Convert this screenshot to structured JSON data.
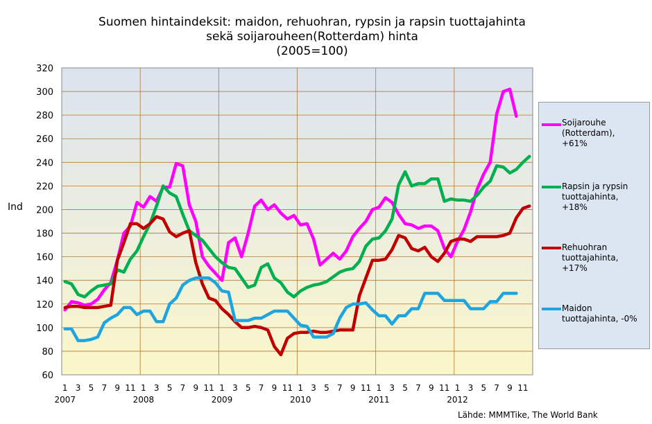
{
  "chart_data": {
    "type": "line",
    "title_lines": [
      "Suomen hintaindeksit: maidon, rehuohran, rypsin ja rapsin tuottajahinta",
      "sekä soijarouheen(Rotterdam) hinta",
      "(2005=100)"
    ],
    "ylabel": "Ind",
    "ylim": [
      60,
      320
    ],
    "yticks": [
      60,
      80,
      100,
      120,
      140,
      160,
      180,
      200,
      220,
      240,
      260,
      280,
      300,
      320
    ],
    "x_month_labels": [
      "1",
      "3",
      "5",
      "7",
      "9",
      "11",
      "1",
      "3",
      "5",
      "7",
      "9",
      "11",
      "1",
      "3",
      "5",
      "7",
      "9",
      "11",
      "1",
      "3",
      "5",
      "7",
      "9",
      "11",
      "1",
      "3",
      "5",
      "7",
      "9",
      "11",
      "1",
      "3",
      "5",
      "7",
      "9",
      "11"
    ],
    "x_year_labels": [
      "2007",
      "2008",
      "2009",
      "2010",
      "2011",
      "2012"
    ],
    "grid": true,
    "legend_position": "right",
    "source": "Lähde: MMMTike, The World Bank",
    "series": [
      {
        "legend_lines": [
          "Soijarouhe",
          "(Rotterdam),",
          "+61%"
        ],
        "color": "#ff00ff",
        "values": [
          115,
          122,
          121,
          119,
          120,
          124,
          132,
          138,
          157,
          180,
          186,
          206,
          202,
          211,
          207,
          219,
          219,
          239,
          237,
          204,
          190,
          160,
          152,
          146,
          140,
          172,
          176,
          160,
          180,
          203,
          208,
          200,
          204,
          197,
          192,
          195,
          187,
          188,
          175,
          153,
          158,
          163,
          158,
          165,
          177,
          184,
          190,
          200,
          202,
          210,
          206,
          196,
          188,
          187,
          184,
          186,
          186,
          182,
          167,
          160,
          173,
          183,
          198,
          217,
          230,
          240,
          281,
          300,
          302,
          279
        ]
      },
      {
        "legend_lines": [
          "Rapsin ja rypsin",
          "tuottajahinta,",
          "+18%"
        ],
        "color": "#00b050",
        "values": [
          139,
          137,
          128,
          126,
          131,
          135,
          136,
          137,
          149,
          147,
          158,
          165,
          177,
          188,
          203,
          220,
          214,
          211,
          196,
          182,
          178,
          174,
          167,
          160,
          155,
          151,
          150,
          142,
          134,
          136,
          151,
          154,
          142,
          138,
          130,
          126,
          131,
          134,
          136,
          137,
          139,
          143,
          147,
          149,
          150,
          156,
          169,
          175,
          176,
          182,
          192,
          221,
          232,
          220,
          222,
          222,
          226,
          226,
          207,
          209,
          208,
          208,
          207,
          212,
          219,
          224,
          237,
          236,
          231,
          234,
          240,
          245
        ]
      },
      {
        "legend_lines": [
          "Rehuohran",
          "tuottajahinta,",
          "+17%"
        ],
        "color": "#c00000",
        "values": [
          117,
          118,
          118,
          117,
          117,
          117,
          118,
          119,
          157,
          172,
          188,
          188,
          184,
          188,
          194,
          192,
          181,
          177,
          180,
          182,
          155,
          137,
          125,
          123,
          116,
          111,
          105,
          100,
          100,
          101,
          100,
          98,
          84,
          77,
          91,
          95,
          96,
          96,
          97,
          96,
          96,
          97,
          98,
          98,
          98,
          127,
          142,
          157,
          157,
          158,
          166,
          178,
          176,
          167,
          165,
          168,
          160,
          156,
          163,
          173,
          175,
          175,
          173,
          177,
          177,
          177,
          177,
          178,
          180,
          193,
          201,
          203
        ]
      },
      {
        "legend_lines": [
          "Maidon",
          "tuottajahinta, -0%"
        ],
        "color": "#1ea5e0",
        "values": [
          99,
          99,
          89,
          89,
          90,
          92,
          104,
          108,
          111,
          117,
          117,
          111,
          114,
          114,
          105,
          105,
          120,
          125,
          136,
          140,
          142,
          142,
          142,
          138,
          131,
          130,
          106,
          106,
          106,
          108,
          108,
          111,
          114,
          114,
          114,
          108,
          102,
          101,
          92,
          92,
          92,
          95,
          108,
          117,
          120,
          120,
          121,
          115,
          110,
          110,
          103,
          110,
          110,
          116,
          116,
          129,
          129,
          129,
          123,
          123,
          123,
          123,
          116,
          116,
          116,
          122,
          122,
          129,
          129,
          129
        ]
      }
    ]
  }
}
